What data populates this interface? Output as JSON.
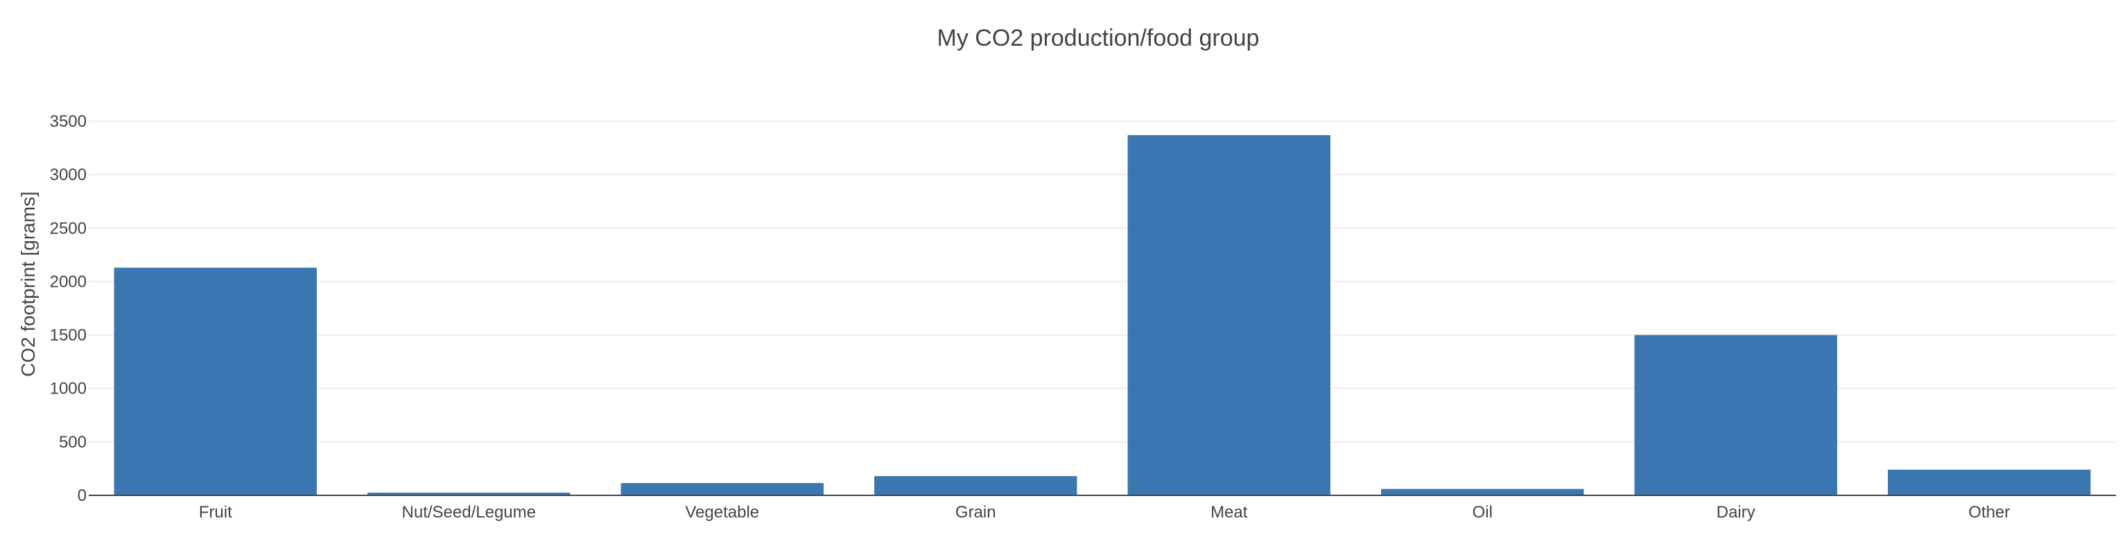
{
  "chart_data": {
    "type": "bar",
    "title": "My CO2 production/food group",
    "xlabel": "",
    "ylabel": "CO2 footprint [grams]",
    "categories": [
      "Fruit",
      "Nut/Seed/Legume",
      "Vegetable",
      "Grain",
      "Meat",
      "Oil",
      "Dairy",
      "Other"
    ],
    "values": [
      2130,
      25,
      115,
      180,
      3370,
      60,
      1500,
      240
    ],
    "ylim": [
      0,
      3500
    ],
    "yticks": [
      0,
      500,
      1000,
      1500,
      2000,
      2500,
      3000,
      3500
    ],
    "grid": true,
    "legend": "none",
    "colors": {
      "bar": "#3a76af",
      "grid": "#eeeeee",
      "axis": "#444444",
      "text": "#444444"
    }
  }
}
